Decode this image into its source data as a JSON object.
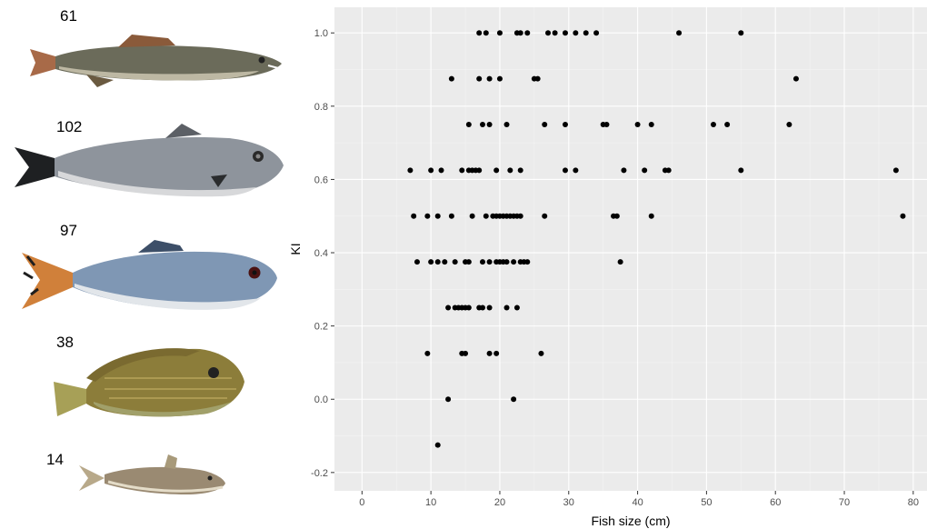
{
  "fish": [
    {
      "count": "61",
      "species_icon": "trahira-fish-icon"
    },
    {
      "count": "102",
      "species_icon": "croaker-fish-icon"
    },
    {
      "count": "97",
      "species_icon": "characin-fish-icon"
    },
    {
      "count": "38",
      "species_icon": "cichlid-fish-icon"
    },
    {
      "count": "14",
      "species_icon": "catfish-icon"
    }
  ],
  "chart_data": {
    "type": "scatter",
    "xlabel": "Fish size (cm)",
    "ylabel": "KI",
    "xlim": [
      -4,
      82
    ],
    "ylim": [
      -0.25,
      1.07
    ],
    "xticks": [
      0,
      10,
      20,
      30,
      40,
      50,
      60,
      70,
      80
    ],
    "yticks": [
      -0.2,
      0.0,
      0.2,
      0.4,
      0.6,
      0.8,
      1.0
    ],
    "ytick_labels": [
      "-0.2",
      "0.0",
      "0.2",
      "0.4",
      "0.6",
      "0.8",
      "1.0"
    ],
    "grid": true,
    "panel_color": "#ebebeb",
    "point_color": "#000000",
    "points": [
      [
        17,
        1.0
      ],
      [
        18,
        1.0
      ],
      [
        20,
        1.0
      ],
      [
        22.5,
        1.0
      ],
      [
        23,
        1.0
      ],
      [
        24,
        1.0
      ],
      [
        27,
        1.0
      ],
      [
        28,
        1.0
      ],
      [
        29.5,
        1.0
      ],
      [
        31,
        1.0
      ],
      [
        32.5,
        1.0
      ],
      [
        34,
        1.0
      ],
      [
        46,
        1.0
      ],
      [
        55,
        1.0
      ],
      [
        13,
        0.875
      ],
      [
        17,
        0.875
      ],
      [
        18.5,
        0.875
      ],
      [
        20,
        0.875
      ],
      [
        25,
        0.875
      ],
      [
        25.5,
        0.875
      ],
      [
        63,
        0.875
      ],
      [
        15.5,
        0.75
      ],
      [
        17.5,
        0.75
      ],
      [
        18.5,
        0.75
      ],
      [
        21,
        0.75
      ],
      [
        26.5,
        0.75
      ],
      [
        29.5,
        0.75
      ],
      [
        35,
        0.75
      ],
      [
        35.5,
        0.75
      ],
      [
        40,
        0.75
      ],
      [
        42,
        0.75
      ],
      [
        51,
        0.75
      ],
      [
        53,
        0.75
      ],
      [
        62,
        0.75
      ],
      [
        7,
        0.625
      ],
      [
        10,
        0.625
      ],
      [
        11.5,
        0.625
      ],
      [
        14.5,
        0.625
      ],
      [
        15.5,
        0.625
      ],
      [
        16,
        0.625
      ],
      [
        16.5,
        0.625
      ],
      [
        17,
        0.625
      ],
      [
        19.5,
        0.625
      ],
      [
        21.5,
        0.625
      ],
      [
        23,
        0.625
      ],
      [
        29.5,
        0.625
      ],
      [
        31,
        0.625
      ],
      [
        38,
        0.625
      ],
      [
        41,
        0.625
      ],
      [
        44,
        0.625
      ],
      [
        44.5,
        0.625
      ],
      [
        55,
        0.625
      ],
      [
        77.5,
        0.625
      ],
      [
        7.5,
        0.5
      ],
      [
        9.5,
        0.5
      ],
      [
        11,
        0.5
      ],
      [
        13,
        0.5
      ],
      [
        16,
        0.5
      ],
      [
        18,
        0.5
      ],
      [
        19,
        0.5
      ],
      [
        19.5,
        0.5
      ],
      [
        20,
        0.5
      ],
      [
        20.5,
        0.5
      ],
      [
        21,
        0.5
      ],
      [
        21.5,
        0.5
      ],
      [
        22,
        0.5
      ],
      [
        22.5,
        0.5
      ],
      [
        23,
        0.5
      ],
      [
        26.5,
        0.5
      ],
      [
        36.5,
        0.5
      ],
      [
        37,
        0.5
      ],
      [
        42,
        0.5
      ],
      [
        78.5,
        0.5
      ],
      [
        8,
        0.375
      ],
      [
        10,
        0.375
      ],
      [
        11,
        0.375
      ],
      [
        12,
        0.375
      ],
      [
        13.5,
        0.375
      ],
      [
        15,
        0.375
      ],
      [
        15.5,
        0.375
      ],
      [
        17.5,
        0.375
      ],
      [
        18.5,
        0.375
      ],
      [
        19.5,
        0.375
      ],
      [
        20,
        0.375
      ],
      [
        20.5,
        0.375
      ],
      [
        21,
        0.375
      ],
      [
        22,
        0.375
      ],
      [
        23,
        0.375
      ],
      [
        23.5,
        0.375
      ],
      [
        24,
        0.375
      ],
      [
        37.5,
        0.375
      ],
      [
        12.5,
        0.25
      ],
      [
        13.5,
        0.25
      ],
      [
        14,
        0.25
      ],
      [
        14.5,
        0.25
      ],
      [
        15,
        0.25
      ],
      [
        15.5,
        0.25
      ],
      [
        17,
        0.25
      ],
      [
        17.5,
        0.25
      ],
      [
        18.5,
        0.25
      ],
      [
        21,
        0.25
      ],
      [
        22.5,
        0.25
      ],
      [
        9.5,
        0.125
      ],
      [
        14.5,
        0.125
      ],
      [
        15,
        0.125
      ],
      [
        18.5,
        0.125
      ],
      [
        19.5,
        0.125
      ],
      [
        26,
        0.125
      ],
      [
        12.5,
        0.0
      ],
      [
        22,
        0.0
      ],
      [
        11,
        -0.125
      ]
    ]
  }
}
